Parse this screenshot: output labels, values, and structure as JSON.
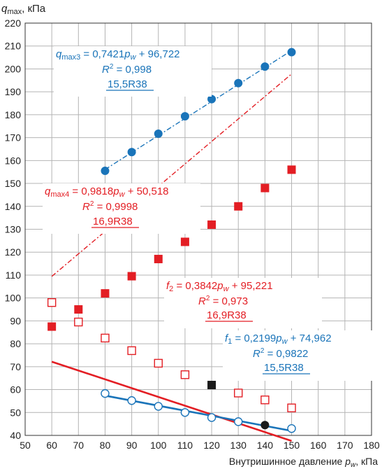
{
  "chart_data": {
    "type": "scatter",
    "ylabel": {
      "main": "q",
      "sub": "max",
      "tail": ", кПа"
    },
    "xlabel": {
      "main": "Внутришинное давление ",
      "var": "p",
      "sub": "w",
      "tail": ", кПа"
    },
    "xlim": [
      50,
      180
    ],
    "ylim": [
      40,
      220
    ],
    "x_ticks": [
      50,
      60,
      70,
      80,
      90,
      100,
      110,
      120,
      130,
      140,
      150,
      160,
      170,
      180
    ],
    "y_ticks": [
      40,
      50,
      60,
      70,
      80,
      90,
      100,
      110,
      120,
      130,
      140,
      150,
      160,
      170,
      180,
      190,
      200,
      210,
      220
    ],
    "grid": true,
    "colors": {
      "blue": "#1a74b9",
      "red": "#e31e24",
      "black": "#1a1a1a",
      "grid": "#b4b4b4"
    },
    "series": [
      {
        "id": "qmax3",
        "color": "#1a74b9",
        "marker": "circle-filled",
        "x": [
          80,
          90,
          100,
          110,
          120,
          130,
          140,
          150
        ],
        "y": [
          155.5,
          163.7,
          171.7,
          179.3,
          186.8,
          193.8,
          201.0,
          207.3
        ],
        "fit": {
          "slope": 0.7421,
          "intercept": 96.722,
          "x": [
            80,
            150
          ],
          "style": "dashdot"
        },
        "label": {
          "sym": "q",
          "sub": "max3",
          "eq": " = 0,7421",
          "pvar": "p",
          "psub": "w",
          "tail": " + 96,722",
          "r2": "0,998",
          "tire": "15,5R38"
        }
      },
      {
        "id": "qmax4",
        "color": "#e31e24",
        "marker": "square-filled",
        "x": [
          60,
          70,
          80,
          90,
          100,
          110,
          120,
          130,
          140,
          150
        ],
        "y": [
          87.5,
          95.0,
          102.0,
          109.5,
          117.0,
          124.5,
          132.0,
          140.0,
          148.0,
          156.0
        ],
        "fit": {
          "slope": 0.9818,
          "intercept": 50.518,
          "x": [
            60,
            150
          ],
          "style": "dashdot"
        },
        "label": {
          "sym": "q",
          "sub": "max4",
          "eq": " = 0,9818",
          "pvar": "p",
          "psub": "w",
          "tail": " + 50,518",
          "r2": "0,9998",
          "tire": "16,9R38"
        }
      },
      {
        "id": "f2",
        "color": "#e31e24",
        "marker": "square-open",
        "x": [
          60,
          70,
          80,
          90,
          100,
          110,
          120,
          130,
          140,
          150
        ],
        "y": [
          98.0,
          89.5,
          82.5,
          77.0,
          71.5,
          66.5,
          62.0,
          58.5,
          55.5,
          52.0
        ],
        "highlight": [
          {
            "x": 120,
            "y": 62.0,
            "color": "#1a1a1a"
          }
        ],
        "fit": {
          "slope": -0.3842,
          "intercept": 95.221,
          "x": [
            60,
            150
          ],
          "style": "solid"
        },
        "label": {
          "sym": "f",
          "sub": "2",
          "eq": " = 0,3842",
          "pvar": "p",
          "psub": "w",
          "tail": " + 95,221",
          "r2": "0,973",
          "tire": "16,9R38"
        }
      },
      {
        "id": "f1",
        "color": "#1a74b9",
        "marker": "circle-open",
        "x": [
          80,
          90,
          100,
          110,
          120,
          130,
          140,
          150
        ],
        "y": [
          58.3,
          55.2,
          52.7,
          50.0,
          47.8,
          46.0,
          44.5,
          43.0
        ],
        "highlight": [
          {
            "x": 140,
            "y": 44.5,
            "color": "#1a1a1a"
          }
        ],
        "fit": {
          "slope": -0.2199,
          "intercept": 74.962,
          "x": [
            80,
            150
          ],
          "style": "solid"
        },
        "label": {
          "sym": "f",
          "sub": "1",
          "eq": " = 0,2199",
          "pvar": "p",
          "psub": "w",
          "tail": " + 74,962",
          "r2": "0,9822",
          "tire": "15,5R38"
        }
      }
    ]
  }
}
